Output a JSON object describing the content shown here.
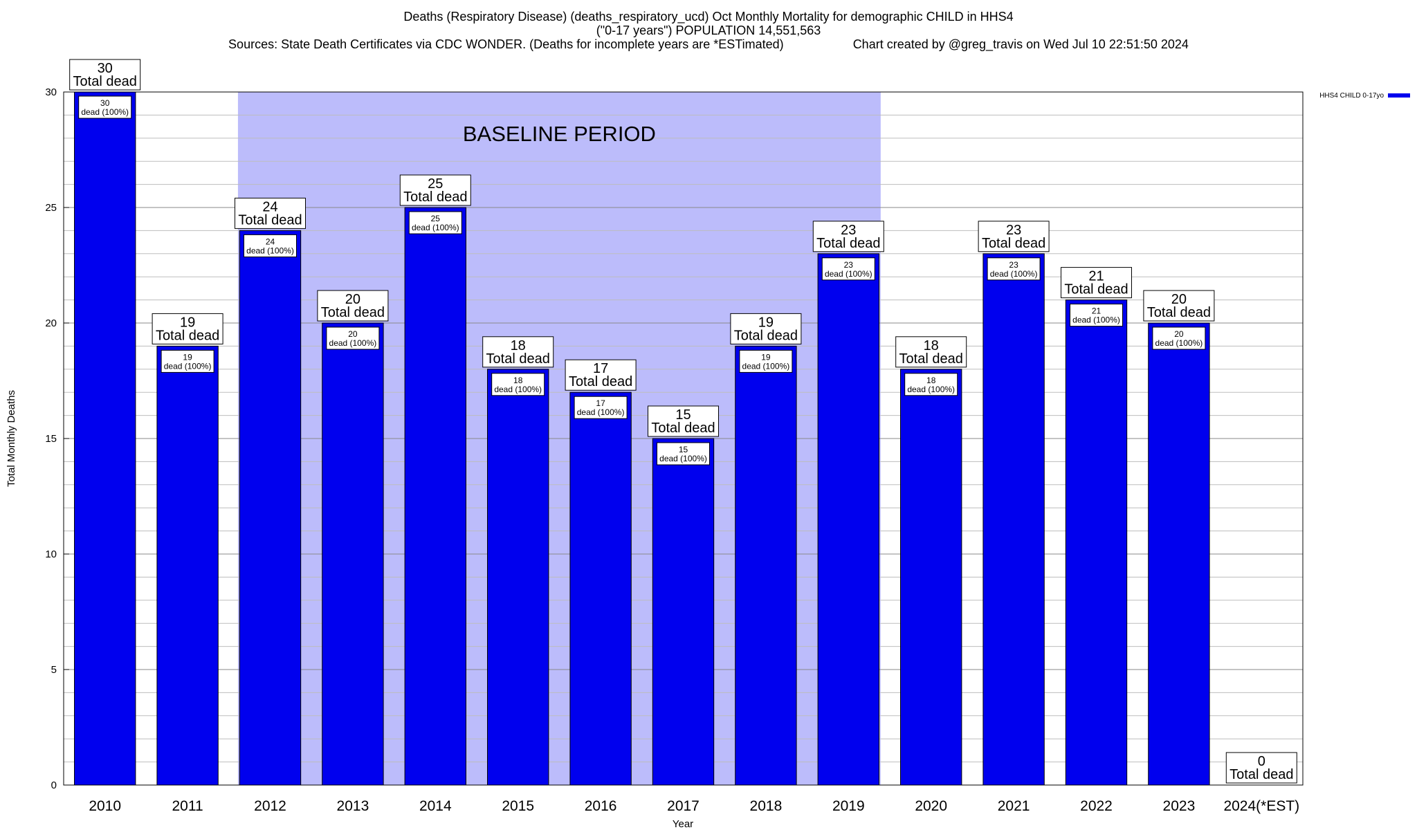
{
  "header": {
    "title": "Deaths (Respiratory Disease) (deaths_respiratory_ucd) Oct Monthly Mortality for demographic CHILD in HHS4",
    "subtitle": "(\"0-17 years\") POPULATION 14,551,563",
    "sources": "Sources: State Death Certificates via CDC WONDER. (Deaths for incomplete years are *ESTimated)",
    "credit": "Chart created by @greg_travis on Wed Jul 10 22:51:50 2024"
  },
  "chart_data": {
    "type": "bar",
    "xlabel": "Year",
    "ylabel": "Total Monthly Deaths",
    "ylim": [
      0,
      30
    ],
    "yticks": [
      0,
      5,
      10,
      15,
      20,
      25,
      30
    ],
    "minor_grid_step": 1,
    "grid": true,
    "categories": [
      "2010",
      "2011",
      "2012",
      "2013",
      "2014",
      "2015",
      "2016",
      "2017",
      "2018",
      "2019",
      "2020",
      "2021",
      "2022",
      "2023",
      "2024(*EST)"
    ],
    "series": [
      {
        "name": "HHS4 CHILD 0-17yo",
        "color": "#0000ee",
        "values": [
          30,
          19,
          24,
          20,
          25,
          18,
          17,
          15,
          19,
          23,
          18,
          23,
          21,
          20,
          0
        ]
      }
    ],
    "top_label_suffix": "Total dead",
    "inner_label_suffix": "dead (100%)",
    "baseline": {
      "label": "BASELINE PERIOD",
      "from": "2012",
      "to": "2019",
      "color": "#bcbcfb"
    },
    "legend_position": "top-right"
  }
}
